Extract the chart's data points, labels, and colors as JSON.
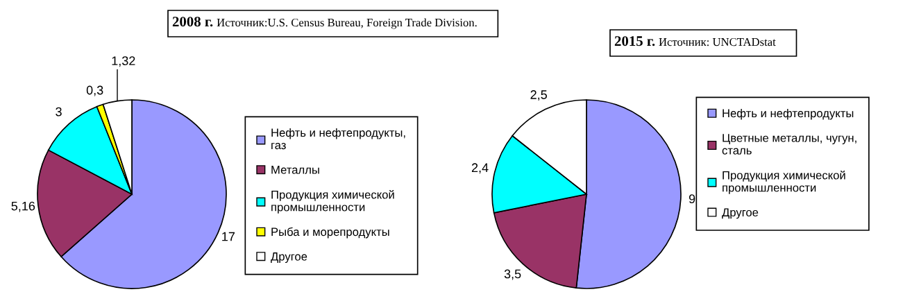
{
  "chart_data": [
    {
      "type": "pie",
      "title": "2008 г.",
      "subtitle": "Источник:U.S. Census Bureau, Foreign Trade Division.",
      "categories": [
        "Нефть и нефтепродукты, газ",
        "Металлы",
        "Продукция химической промышленности",
        "Рыба и морепродукты",
        "Другое"
      ],
      "values": [
        17,
        5.16,
        3,
        0.3,
        1.32
      ],
      "value_labels": [
        "17",
        "5,16",
        "3",
        "0,3",
        "1,32"
      ],
      "colors": [
        "#9999ff",
        "#993366",
        "#00ffff",
        "#ffff00",
        "#ffffff"
      ],
      "legend": "right"
    },
    {
      "type": "pie",
      "title": "2015 г.",
      "subtitle": "Источник: UNCTADstat",
      "categories": [
        "Нефть и нефтепродукты",
        "Цветные металлы, чугун, сталь",
        "Продукция химической промышленности",
        "Другое"
      ],
      "values": [
        9,
        3.5,
        2.4,
        2.5
      ],
      "value_labels": [
        "9",
        "3,5",
        "2,4",
        "2,5"
      ],
      "colors": [
        "#9999ff",
        "#993366",
        "#00ffff",
        "#ffffff"
      ],
      "legend": "right"
    }
  ]
}
